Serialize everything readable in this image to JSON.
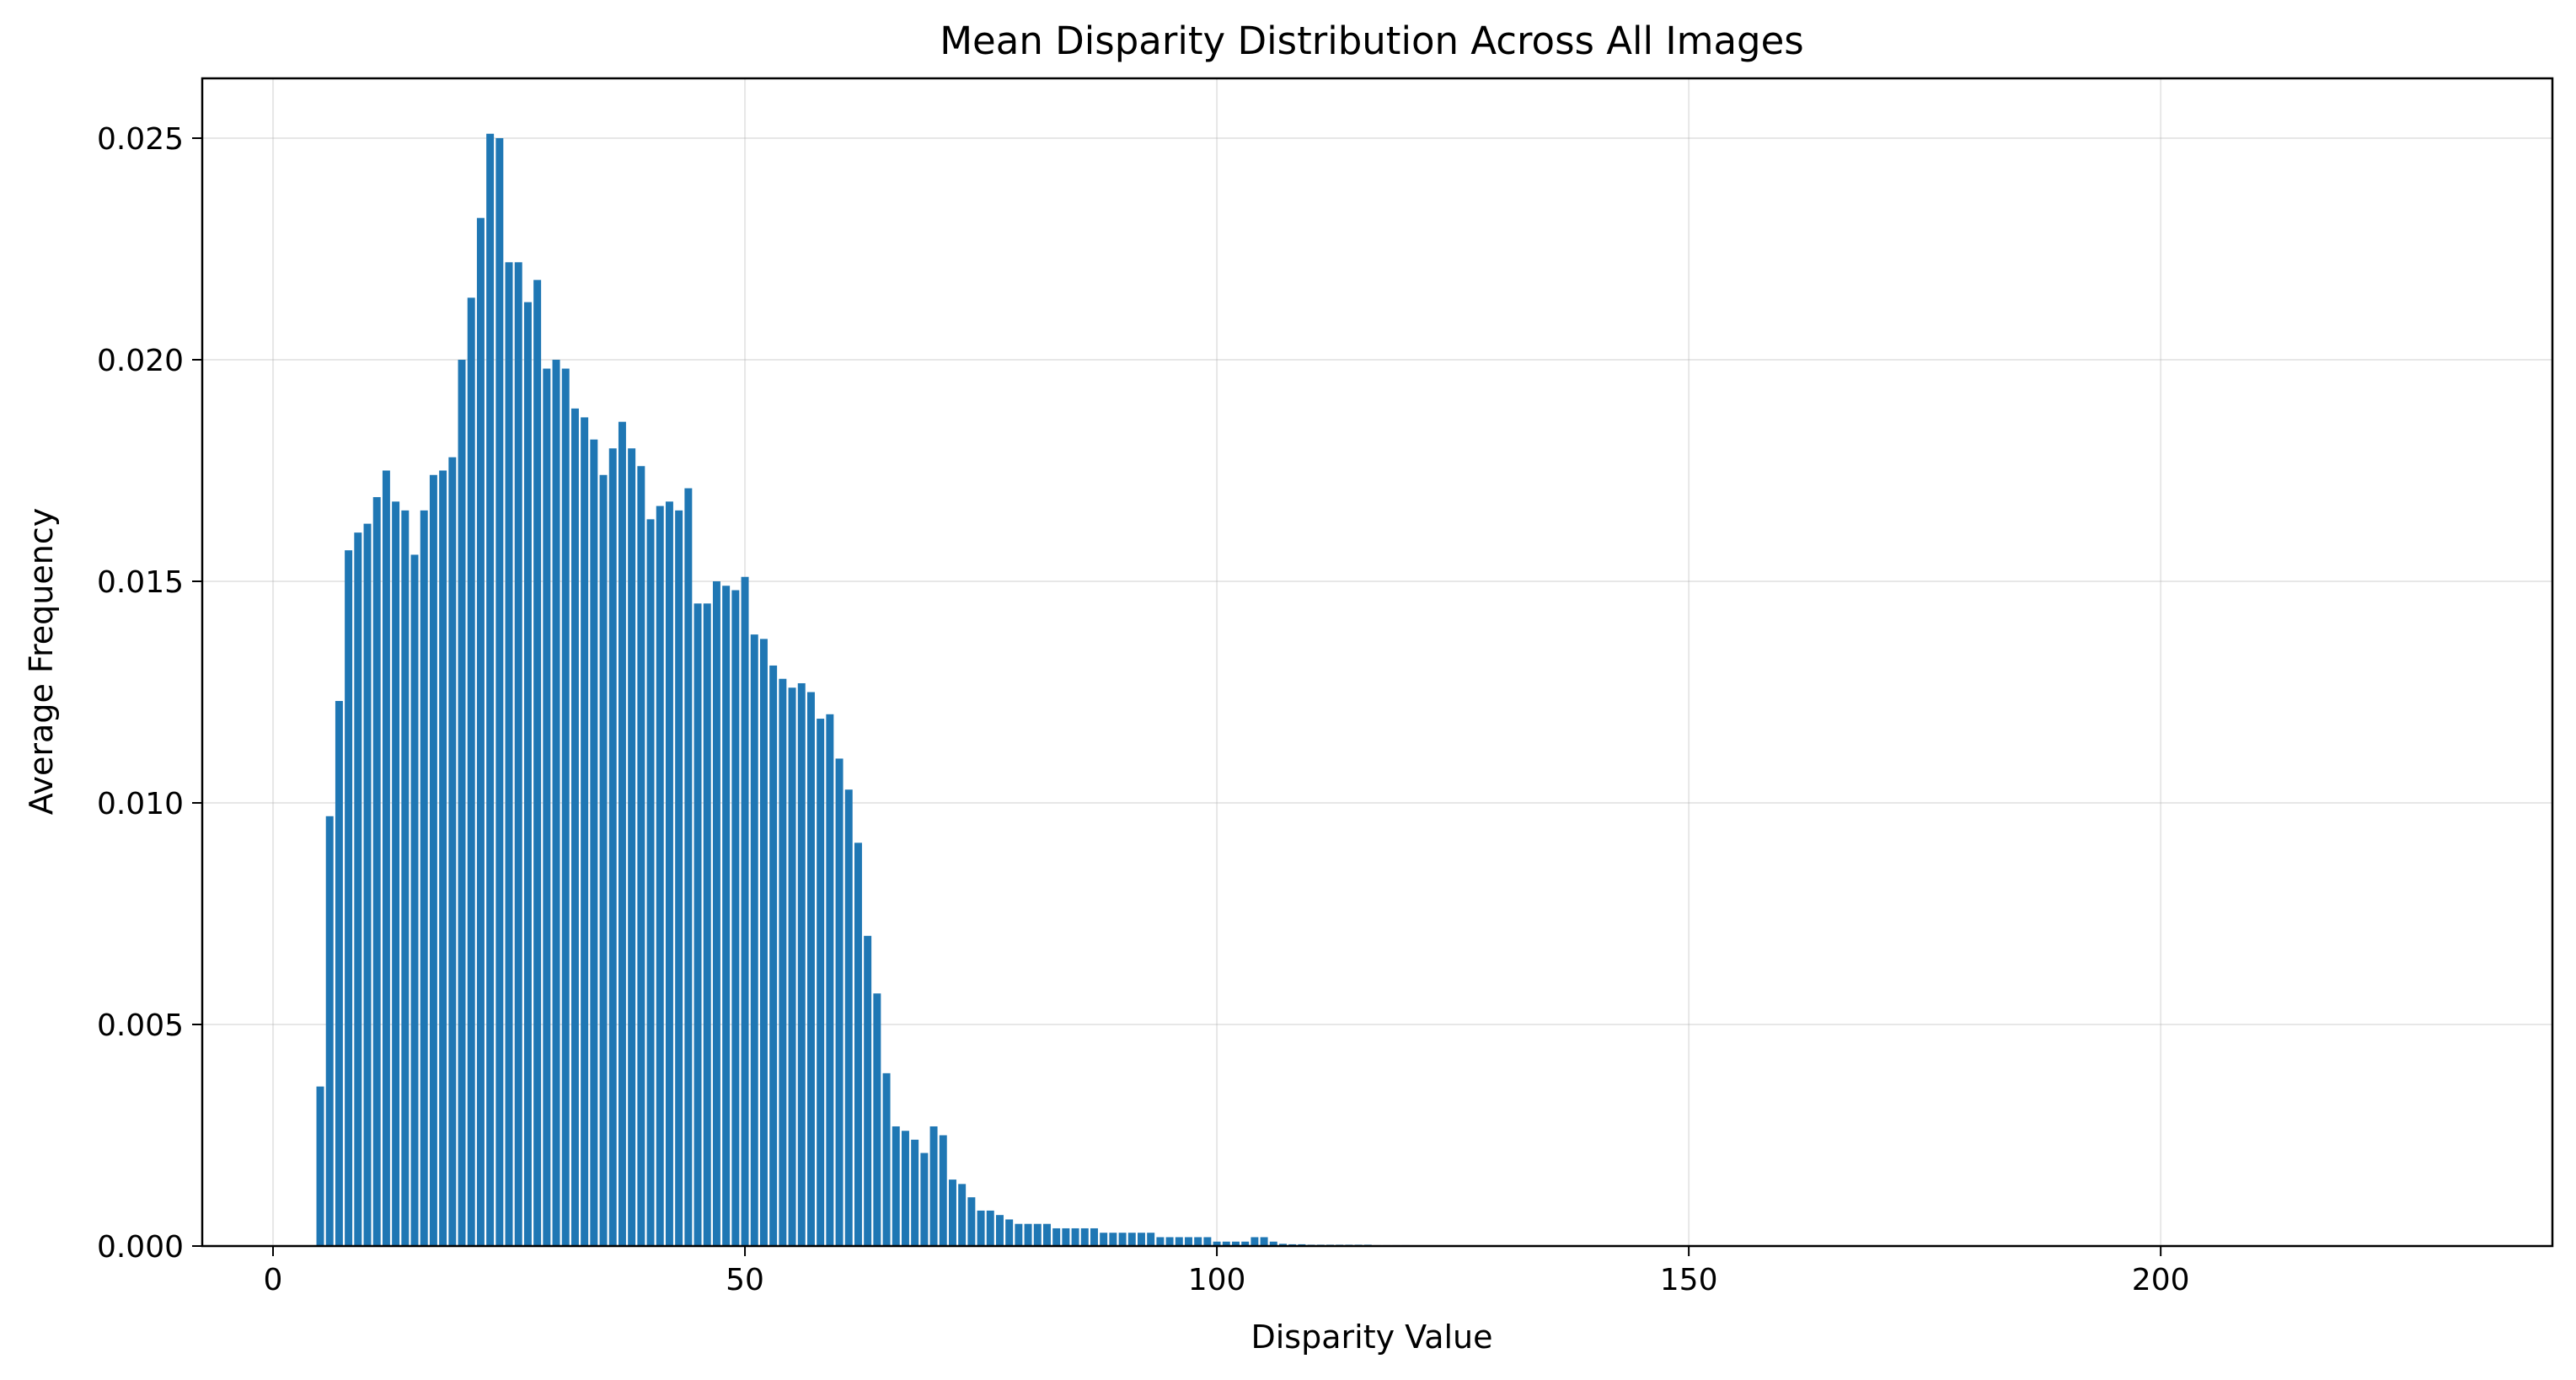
{
  "chart_data": {
    "type": "bar",
    "title": "Mean Disparity Distribution Across All Images",
    "xlabel": "Disparity Value",
    "ylabel": "Average Frequency",
    "xlim": [
      -7.5,
      241.5
    ],
    "ylim": [
      0,
      0.02635
    ],
    "xticks": [
      0,
      50,
      100,
      150,
      200
    ],
    "yticks": [
      0.0,
      0.005,
      0.01,
      0.015,
      0.02,
      0.025
    ],
    "ytick_labels": [
      "0.000",
      "0.005",
      "0.010",
      "0.015",
      "0.020",
      "0.025"
    ],
    "grid": true,
    "bar_color": "#1f77b4",
    "bar_width": 0.8,
    "x": [
      5,
      6,
      7,
      8,
      9,
      10,
      11,
      12,
      13,
      14,
      15,
      16,
      17,
      18,
      19,
      20,
      21,
      22,
      23,
      24,
      25,
      26,
      27,
      28,
      29,
      30,
      31,
      32,
      33,
      34,
      35,
      36,
      37,
      38,
      39,
      40,
      41,
      42,
      43,
      44,
      45,
      46,
      47,
      48,
      49,
      50,
      51,
      52,
      53,
      54,
      55,
      56,
      57,
      58,
      59,
      60,
      61,
      62,
      63,
      64,
      65,
      66,
      67,
      68,
      69,
      70,
      71,
      72,
      73,
      74,
      75,
      76,
      77,
      78,
      79,
      80,
      81,
      82,
      83,
      84,
      85,
      86,
      87,
      88,
      89,
      90,
      91,
      92,
      93,
      94,
      95,
      96,
      97,
      98,
      99,
      100,
      101,
      102,
      103,
      104,
      105,
      106,
      107,
      108,
      109,
      110,
      111,
      112,
      113,
      114,
      115,
      116,
      117,
      118,
      119,
      120
    ],
    "values": [
      0.0036,
      0.0097,
      0.0123,
      0.0157,
      0.0161,
      0.0163,
      0.0169,
      0.0175,
      0.0168,
      0.0166,
      0.0156,
      0.0166,
      0.0174,
      0.0175,
      0.0178,
      0.02,
      0.0214,
      0.0232,
      0.0251,
      0.025,
      0.0222,
      0.0222,
      0.0213,
      0.0218,
      0.0198,
      0.02,
      0.0198,
      0.0189,
      0.0187,
      0.0182,
      0.0174,
      0.018,
      0.0186,
      0.018,
      0.0176,
      0.0164,
      0.0167,
      0.0168,
      0.0166,
      0.0171,
      0.0145,
      0.0145,
      0.015,
      0.0149,
      0.0148,
      0.0151,
      0.0138,
      0.0137,
      0.0131,
      0.0128,
      0.0126,
      0.0127,
      0.0125,
      0.0119,
      0.012,
      0.011,
      0.0103,
      0.0091,
      0.007,
      0.0057,
      0.0039,
      0.0027,
      0.0026,
      0.0024,
      0.0021,
      0.0027,
      0.0025,
      0.0015,
      0.0014,
      0.0011,
      0.0008,
      0.0008,
      0.0007,
      0.0006,
      0.0005,
      0.0005,
      0.0005,
      0.0005,
      0.0004,
      0.0004,
      0.0004,
      0.0004,
      0.0004,
      0.0003,
      0.0003,
      0.0003,
      0.0003,
      0.0003,
      0.0003,
      0.0002,
      0.0002,
      0.0002,
      0.0002,
      0.0002,
      0.0002,
      0.0001,
      0.0001,
      0.0001,
      0.0001,
      0.0002,
      0.0002,
      0.0001,
      5e-05,
      4e-05,
      4e-05,
      3e-05,
      3e-05,
      3e-05,
      3e-05,
      3e-05,
      3e-05,
      3e-05,
      2e-05,
      2e-05,
      2e-05,
      2e-05
    ]
  }
}
